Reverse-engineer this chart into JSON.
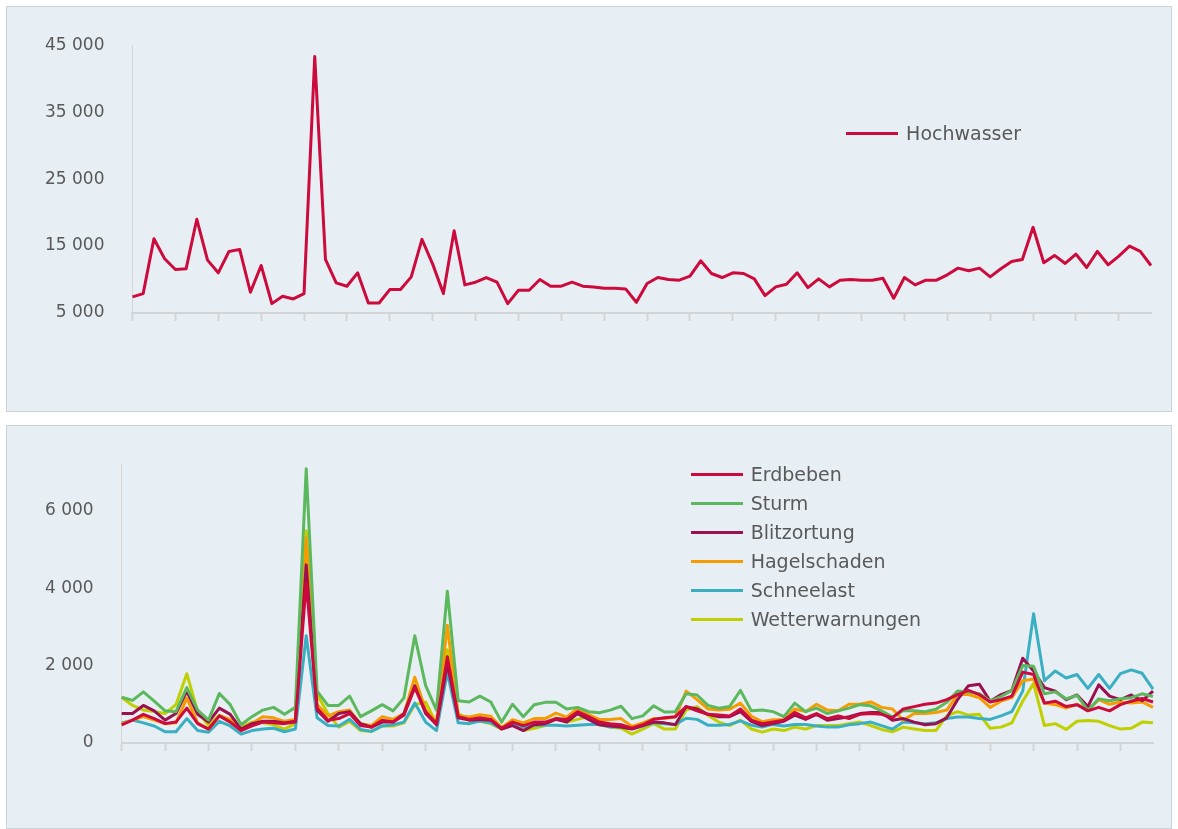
{
  "chart_data": [
    {
      "type": "line",
      "categories": [
        null,
        null,
        null,
        null,
        null,
        null,
        null,
        null,
        null,
        null,
        null,
        null,
        null,
        null,
        null,
        null,
        null,
        null,
        null,
        null,
        null,
        null,
        null,
        null,
        null,
        null,
        null,
        null,
        null,
        null,
        null,
        null,
        null,
        null,
        null,
        null,
        null,
        null,
        null,
        null,
        null,
        null,
        null,
        null,
        null,
        null,
        null,
        null,
        null,
        null,
        null,
        null,
        null,
        null,
        null,
        null,
        null,
        null,
        null,
        null,
        null,
        null,
        null,
        null,
        null,
        null,
        null,
        null,
        null,
        null,
        null,
        null,
        null,
        null,
        null,
        null,
        null,
        null,
        null,
        null,
        null,
        null,
        null,
        null,
        null,
        null,
        null,
        null,
        null,
        null,
        null,
        null,
        null,
        null,
        null,
        null
      ],
      "series": [
        {
          "name": "Hochwasser",
          "color": "#cc0a3c",
          "values": [
            7400,
            7900,
            16100,
            13100,
            11500,
            11600,
            19000,
            12900,
            11000,
            14200,
            14500,
            8100,
            12100,
            6400,
            7500,
            7100,
            7900,
            43300,
            13000,
            9500,
            9000,
            11000,
            6500,
            6500,
            8500,
            8500,
            10400,
            16000,
            12300,
            7900,
            17300,
            9200,
            9600,
            10300,
            9600,
            6400,
            8400,
            8400,
            10000,
            9000,
            9000,
            9600,
            9000,
            8900,
            8700,
            8700,
            8600,
            6600,
            9400,
            10300,
            10000,
            9900,
            10500,
            12800,
            10900,
            10300,
            11000,
            10900,
            10100,
            7600,
            8900,
            9300,
            11000,
            8800,
            10100,
            8900,
            9900,
            10000,
            9900,
            9900,
            10200,
            7200,
            10300,
            9200,
            9900,
            9900,
            10700,
            11700,
            11300,
            11700,
            10400,
            11600,
            12700,
            13000,
            17800,
            12500,
            13600,
            12400,
            13800,
            11800,
            14200,
            12200,
            13500,
            15000,
            14200,
            12100
          ]
        }
      ],
      "ylim": [
        5000,
        45000
      ],
      "yticks": [
        {
          "value": 5000,
          "label": "5 000"
        },
        {
          "value": 15000,
          "label": "15 000"
        },
        {
          "value": 25000,
          "label": "25 000"
        },
        {
          "value": 35000,
          "label": "35 000"
        },
        {
          "value": 45000,
          "label": "45 000"
        }
      ],
      "legend": "right",
      "tick_labels": "y",
      "marker": "none"
    },
    {
      "type": "line",
      "categories": [
        null,
        null,
        null,
        null,
        null,
        null,
        null,
        null,
        null,
        null,
        null,
        null,
        null,
        null,
        null,
        null,
        null,
        null,
        null,
        null,
        null,
        null,
        null,
        null,
        null,
        null,
        null,
        null,
        null,
        null,
        null,
        null,
        null,
        null,
        null,
        null,
        null,
        null,
        null,
        null,
        null,
        null,
        null,
        null,
        null,
        null,
        null,
        null,
        null,
        null,
        null,
        null,
        null,
        null,
        null,
        null,
        null,
        null,
        null,
        null,
        null,
        null,
        null,
        null,
        null,
        null,
        null,
        null,
        null,
        null,
        null,
        null,
        null,
        null,
        null,
        null,
        null,
        null,
        null,
        null,
        null,
        null,
        null,
        null,
        null,
        null,
        null,
        null,
        null,
        null,
        null,
        null,
        null,
        null,
        null,
        null
      ],
      "series": [
        {
          "name": "Erdbeben",
          "color": "#cc0a3c",
          "values": [
            470,
            590,
            740,
            630,
            500,
            540,
            900,
            500,
            360,
            700,
            540,
            320,
            440,
            540,
            520,
            500,
            540,
            4140,
            900,
            590,
            630,
            760,
            450,
            410,
            590,
            540,
            720,
            1430,
            810,
            500,
            2230,
            680,
            610,
            650,
            610,
            380,
            540,
            450,
            540,
            540,
            630,
            610,
            810,
            680,
            540,
            500,
            470,
            380,
            470,
            610,
            650,
            680,
            940,
            830,
            740,
            720,
            700,
            880,
            590,
            500,
            540,
            590,
            790,
            650,
            760,
            630,
            700,
            630,
            740,
            760,
            740,
            650,
            880,
            940,
            1000,
            1030,
            1120,
            1250,
            1360,
            1250,
            1060,
            1120,
            1210,
            1830,
            1770,
            1030,
            1080,
            940,
            990,
            830,
            920,
            830,
            990,
            1080,
            1150,
            1060
          ]
        },
        {
          "name": "Sturm",
          "color": "#5cb85c",
          "values": [
            1180,
            1100,
            1320,
            1080,
            830,
            810,
            1430,
            850,
            590,
            1280,
            990,
            470,
            680,
            850,
            920,
            740,
            920,
            7080,
            1340,
            970,
            970,
            1210,
            680,
            830,
            990,
            830,
            1160,
            2770,
            1480,
            850,
            3920,
            1090,
            1060,
            1210,
            1060,
            540,
            1000,
            680,
            990,
            1050,
            1050,
            880,
            920,
            810,
            780,
            850,
            950,
            630,
            700,
            960,
            800,
            810,
            1270,
            1240,
            970,
            900,
            940,
            1360,
            830,
            850,
            810,
            680,
            1030,
            810,
            900,
            760,
            830,
            900,
            990,
            960,
            830,
            670,
            840,
            830,
            810,
            870,
            1050,
            1340,
            1320,
            1270,
            1090,
            1200,
            1360,
            2000,
            1980,
            1270,
            1320,
            1140,
            1230,
            840,
            1140,
            1090,
            1140,
            1170,
            1270,
            1200
          ]
        },
        {
          "name": "Blitzortung",
          "color": "#9b1150",
          "values": [
            760,
            760,
            970,
            830,
            590,
            760,
            1340,
            740,
            540,
            900,
            740,
            360,
            500,
            560,
            560,
            520,
            560,
            4600,
            850,
            560,
            760,
            810,
            500,
            410,
            540,
            540,
            760,
            1480,
            760,
            470,
            2050,
            650,
            590,
            610,
            590,
            360,
            450,
            320,
            470,
            500,
            610,
            540,
            760,
            610,
            470,
            440,
            410,
            360,
            450,
            540,
            520,
            470,
            940,
            880,
            740,
            680,
            680,
            810,
            560,
            450,
            500,
            560,
            720,
            610,
            740,
            590,
            630,
            680,
            760,
            790,
            790,
            590,
            630,
            540,
            470,
            500,
            650,
            1120,
            1480,
            1520,
            1080,
            1250,
            1360,
            2190,
            1860,
            1430,
            1340,
            1120,
            1240,
            940,
            1500,
            1210,
            1120,
            1240,
            1090,
            1340
          ]
        },
        {
          "name": "Hagelschaden",
          "color": "#f59c00",
          "values": [
            500,
            590,
            680,
            590,
            500,
            520,
            1160,
            520,
            360,
            700,
            610,
            360,
            500,
            680,
            650,
            560,
            610,
            5300,
            990,
            700,
            810,
            850,
            500,
            450,
            680,
            610,
            760,
            1700,
            850,
            540,
            3040,
            710,
            670,
            730,
            690,
            400,
            600,
            520,
            630,
            630,
            770,
            670,
            900,
            730,
            610,
            610,
            630,
            430,
            520,
            630,
            630,
            670,
            1340,
            1120,
            880,
            850,
            870,
            1030,
            690,
            550,
            600,
            600,
            880,
            810,
            1000,
            850,
            830,
            1000,
            1000,
            1060,
            920,
            880,
            590,
            760,
            760,
            790,
            850,
            1250,
            1250,
            1170,
            920,
            1080,
            1170,
            1610,
            1650,
            1030,
            990,
            900,
            1000,
            850,
            1120,
            1000,
            1060,
            1030,
            1060,
            920
          ]
        },
        {
          "name": "Schneelast",
          "color": "#3aafc2",
          "values": [
            520,
            590,
            520,
            440,
            290,
            290,
            630,
            320,
            280,
            560,
            440,
            230,
            320,
            360,
            380,
            290,
            360,
            2770,
            650,
            450,
            440,
            610,
            350,
            300,
            440,
            470,
            540,
            1030,
            540,
            320,
            1830,
            520,
            500,
            570,
            520,
            370,
            500,
            410,
            460,
            460,
            460,
            440,
            460,
            480,
            480,
            410,
            410,
            370,
            440,
            520,
            500,
            480,
            640,
            610,
            460,
            460,
            480,
            570,
            460,
            410,
            480,
            440,
            480,
            480,
            440,
            410,
            410,
            470,
            500,
            540,
            450,
            360,
            540,
            520,
            500,
            520,
            630,
            670,
            670,
            630,
            610,
            700,
            810,
            1340,
            3340,
            1610,
            1860,
            1680,
            1770,
            1410,
            1770,
            1410,
            1790,
            1890,
            1800,
            1390
          ]
        },
        {
          "name": "Wetterwarnungen",
          "color": "#bfcf00",
          "values": [
            1180,
            970,
            850,
            810,
            760,
            990,
            1790,
            810,
            450,
            720,
            590,
            410,
            540,
            520,
            470,
            360,
            500,
            5480,
            1250,
            760,
            410,
            560,
            320,
            300,
            440,
            440,
            520,
            990,
            1060,
            500,
            2410,
            760,
            590,
            560,
            500,
            360,
            590,
            320,
            380,
            450,
            650,
            540,
            610,
            680,
            470,
            410,
            380,
            230,
            360,
            500,
            360,
            360,
            850,
            940,
            720,
            540,
            450,
            590,
            360,
            280,
            360,
            320,
            410,
            360,
            450,
            450,
            450,
            500,
            540,
            450,
            350,
            290,
            410,
            360,
            320,
            320,
            700,
            810,
            720,
            740,
            380,
            410,
            520,
            1080,
            1540,
            450,
            500,
            350,
            560,
            580,
            560,
            450,
            360,
            380,
            540,
            520
          ]
        }
      ],
      "ylim": [
        0,
        7200
      ],
      "yticks": [
        {
          "value": 0,
          "label": "0"
        },
        {
          "value": 2000,
          "label": "2 000"
        },
        {
          "value": 4000,
          "label": "4 000"
        },
        {
          "value": 6000,
          "label": "6 000"
        }
      ],
      "legend": "top right",
      "tick_labels": "y",
      "marker": "none"
    }
  ]
}
